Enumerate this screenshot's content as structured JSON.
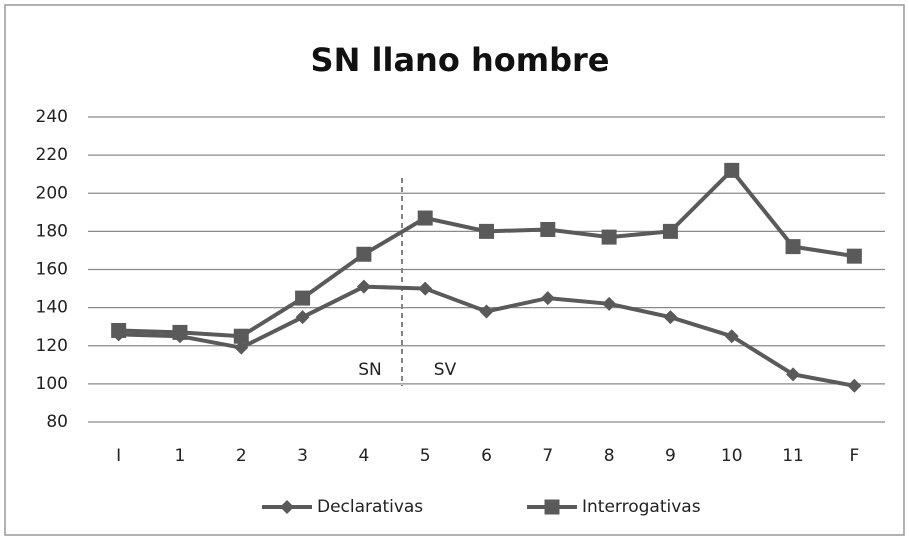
{
  "chart_data": {
    "type": "line",
    "title": "SN llano hombre",
    "categories": [
      "I",
      "1",
      "2",
      "3",
      "4",
      "5",
      "6",
      "7",
      "8",
      "9",
      "10",
      "11",
      "F"
    ],
    "series": [
      {
        "name": "Declarativas",
        "color": "#5a5a5a",
        "marker": "diamond",
        "values": [
          126,
          125,
          119,
          135,
          151,
          150,
          138,
          145,
          142,
          135,
          125,
          105,
          99
        ]
      },
      {
        "name": "Interrogativas",
        "color": "#5a5a5a",
        "marker": "square",
        "values": [
          128,
          127,
          125,
          145,
          168,
          187,
          180,
          181,
          177,
          180,
          212,
          172,
          167
        ]
      }
    ],
    "ylim": [
      80,
      240
    ],
    "yticks": [
      80,
      100,
      120,
      140,
      160,
      180,
      200,
      220,
      240
    ],
    "grid": true,
    "annotations": [
      "SN",
      "SV"
    ],
    "legend": "bottom"
  }
}
